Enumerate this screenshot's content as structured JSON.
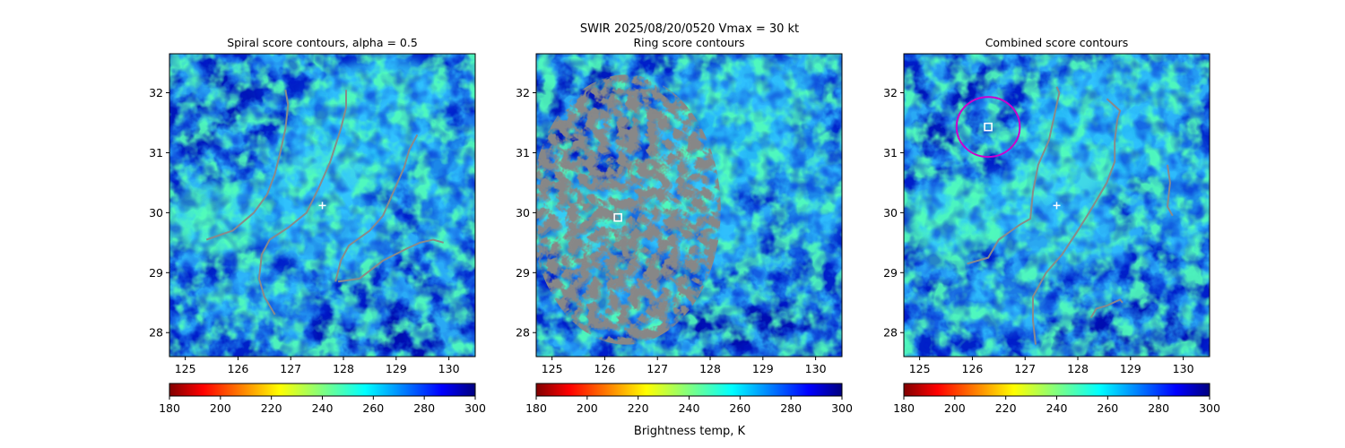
{
  "suptitle": "SWIR  2025/08/20/0520    Vmax = 30 kt",
  "colorbar_label": "Brightness temp, K",
  "colorbar_ticks": [
    "180",
    "200",
    "220",
    "240",
    "260",
    "280",
    "300"
  ],
  "chart_data": [
    {
      "type": "heatmap",
      "title": "Spiral score contours, alpha =  0.5",
      "xlim": [
        124.7,
        130.5
      ],
      "ylim": [
        27.6,
        32.65
      ],
      "xticks": [
        125,
        126,
        127,
        128,
        129,
        130
      ],
      "yticks": [
        28,
        29,
        30,
        31,
        32
      ],
      "colormap": "jet_r",
      "clim": [
        180,
        300
      ],
      "markers": [
        {
          "kind": "plus",
          "color": "#ffffff",
          "lon": 127.6,
          "lat": 30.12
        }
      ],
      "contours": [
        [
          [
            125.4,
            29.55
          ],
          [
            125.9,
            29.7
          ],
          [
            126.3,
            30.0
          ],
          [
            126.55,
            30.3
          ],
          [
            126.7,
            30.65
          ],
          [
            126.8,
            31.0
          ],
          [
            126.9,
            31.4
          ],
          [
            126.95,
            31.8
          ],
          [
            126.9,
            32.05
          ]
        ],
        [
          [
            126.7,
            28.3
          ],
          [
            126.5,
            28.6
          ],
          [
            126.4,
            28.9
          ],
          [
            126.45,
            29.3
          ],
          [
            126.6,
            29.55
          ],
          [
            126.95,
            29.75
          ],
          [
            127.3,
            30.0
          ],
          [
            127.55,
            30.45
          ],
          [
            127.75,
            30.85
          ],
          [
            127.95,
            31.4
          ],
          [
            128.05,
            31.75
          ],
          [
            128.05,
            32.05
          ]
        ],
        [
          [
            127.85,
            28.85
          ],
          [
            127.95,
            29.2
          ],
          [
            128.1,
            29.45
          ],
          [
            128.5,
            29.7
          ],
          [
            128.75,
            29.95
          ],
          [
            128.95,
            30.35
          ],
          [
            129.15,
            30.75
          ],
          [
            129.25,
            31.05
          ],
          [
            129.4,
            31.3
          ]
        ],
        [
          [
            127.9,
            28.85
          ],
          [
            128.3,
            28.9
          ],
          [
            128.75,
            29.2
          ],
          [
            129.2,
            29.4
          ],
          [
            129.45,
            29.5
          ],
          [
            129.7,
            29.55
          ],
          [
            129.9,
            29.5
          ]
        ]
      ]
    },
    {
      "type": "heatmap",
      "title": "Ring score contours",
      "xlim": [
        124.7,
        130.5
      ],
      "ylim": [
        27.6,
        32.65
      ],
      "xticks": [
        125,
        126,
        127,
        128,
        129,
        130
      ],
      "yticks": [
        28,
        29,
        30,
        31,
        32
      ],
      "colormap": "jet_r",
      "clim": [
        180,
        300
      ],
      "markers": [
        {
          "kind": "square",
          "color": "#ffffff",
          "lon": 126.25,
          "lat": 29.92
        }
      ],
      "contour_region": {
        "kind": "dense-ring",
        "lon": 126.4,
        "lat": 30.05,
        "lon_radius": 1.8,
        "lat_radius": 2.25
      }
    },
    {
      "type": "heatmap",
      "title": "Combined score contours",
      "xlim": [
        124.7,
        130.5
      ],
      "ylim": [
        27.6,
        32.65
      ],
      "xticks": [
        125,
        126,
        127,
        128,
        129,
        130
      ],
      "yticks": [
        28,
        29,
        30,
        31,
        32
      ],
      "colormap": "jet_r",
      "clim": [
        180,
        300
      ],
      "markers": [
        {
          "kind": "plus",
          "color": "#ffffff",
          "lon": 127.6,
          "lat": 30.12
        },
        {
          "kind": "square",
          "color": "#ffffff",
          "lon": 126.3,
          "lat": 31.43
        },
        {
          "kind": "circle",
          "color": "#cc00cc",
          "lon": 126.3,
          "lat": 31.43,
          "lon_radius": 0.6,
          "lat_radius": 0.5
        }
      ],
      "contours": [
        [
          [
            125.9,
            29.15
          ],
          [
            126.3,
            29.25
          ],
          [
            126.5,
            29.55
          ],
          [
            126.9,
            29.8
          ],
          [
            127.1,
            29.9
          ],
          [
            127.15,
            30.35
          ],
          [
            127.25,
            30.8
          ],
          [
            127.45,
            31.2
          ],
          [
            127.55,
            31.6
          ],
          [
            127.65,
            32.0
          ],
          [
            127.6,
            32.1
          ]
        ],
        [
          [
            127.2,
            27.8
          ],
          [
            127.15,
            28.2
          ],
          [
            127.15,
            28.6
          ],
          [
            127.4,
            29.0
          ],
          [
            127.7,
            29.3
          ],
          [
            128.0,
            29.7
          ],
          [
            128.25,
            30.05
          ],
          [
            128.55,
            30.5
          ],
          [
            128.7,
            30.85
          ],
          [
            128.7,
            31.2
          ],
          [
            128.75,
            31.55
          ],
          [
            128.8,
            31.7
          ],
          [
            128.55,
            31.9
          ]
        ],
        [
          [
            129.7,
            30.8
          ],
          [
            129.75,
            30.5
          ],
          [
            129.7,
            30.1
          ],
          [
            129.8,
            29.95
          ]
        ],
        [
          [
            128.25,
            28.25
          ],
          [
            128.35,
            28.4
          ],
          [
            128.55,
            28.45
          ],
          [
            128.8,
            28.55
          ],
          [
            128.85,
            28.5
          ]
        ]
      ]
    }
  ]
}
